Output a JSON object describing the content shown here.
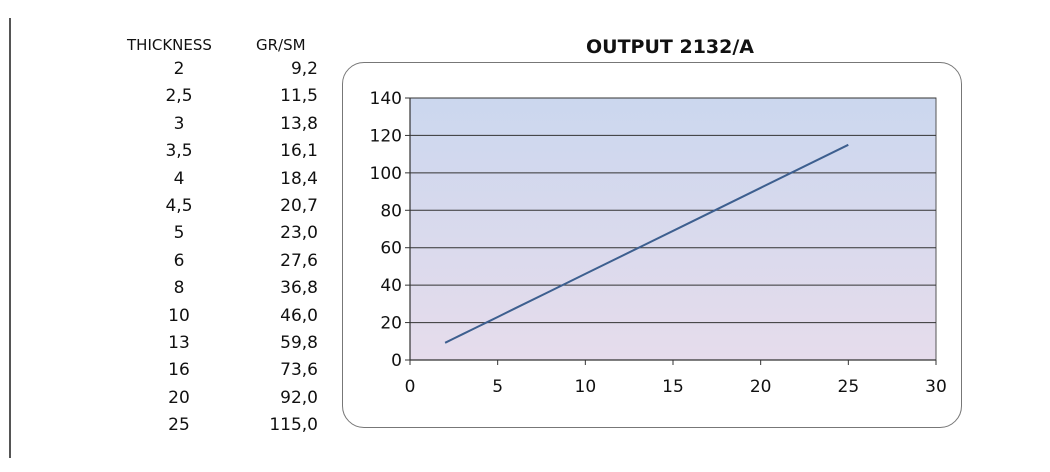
{
  "table": {
    "headers": [
      "THICKNESS",
      "GR/SM"
    ],
    "rows": [
      [
        "2",
        "9,2"
      ],
      [
        "2,5",
        "11,5"
      ],
      [
        "3",
        "13,8"
      ],
      [
        "3,5",
        "16,1"
      ],
      [
        "4",
        "18,4"
      ],
      [
        "4,5",
        "20,7"
      ],
      [
        "5",
        "23,0"
      ],
      [
        "6",
        "27,6"
      ],
      [
        "8",
        "36,8"
      ],
      [
        "10",
        "46,0"
      ],
      [
        "13",
        "59,8"
      ],
      [
        "16",
        "73,6"
      ],
      [
        "20",
        "92,0"
      ],
      [
        "25",
        "115,0"
      ]
    ]
  },
  "chart_data": {
    "type": "line",
    "title": "OUTPUT 2132/A",
    "xlabel": "",
    "ylabel": "",
    "xlim": [
      0,
      30
    ],
    "ylim": [
      0,
      140
    ],
    "xticks": [
      0,
      5,
      10,
      15,
      20,
      25,
      30
    ],
    "yticks": [
      0,
      20,
      40,
      60,
      80,
      100,
      120,
      140
    ],
    "grid": "horizontal",
    "legend": "none",
    "series": [
      {
        "x": [
          2,
          2.5,
          3,
          3.5,
          4,
          4.5,
          5,
          6,
          8,
          10,
          13,
          16,
          20,
          25
        ],
        "y": [
          9.2,
          11.5,
          13.8,
          16.1,
          18.4,
          20.7,
          23.0,
          27.6,
          36.8,
          46.0,
          59.8,
          73.6,
          92.0,
          115.0
        ]
      }
    ],
    "colors": {
      "line": "#3d5f8f",
      "plot_bg_top": "#cbd7ee",
      "plot_bg_bottom": "#e6dcec",
      "grid": "#333333"
    }
  }
}
